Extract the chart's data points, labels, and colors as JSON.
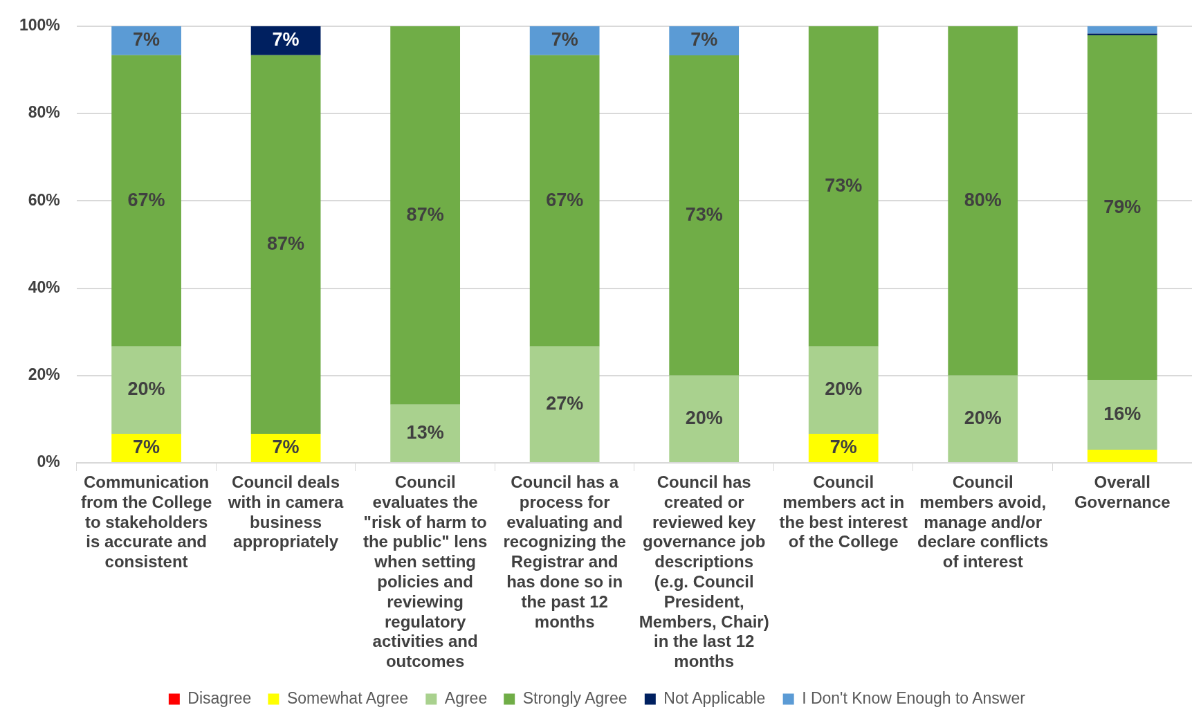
{
  "chart_data": {
    "type": "bar",
    "stacked": true,
    "categories": [
      "Communication from the College to stakeholders is accurate and consistent",
      "Council deals with in camera business appropriately",
      "Council evaluates the \"risk of harm to the public\" lens when setting policies and reviewing regulatory activities and outcomes",
      "Council has a process for evaluating and recognizing the Registrar and has done so in the past 12 months",
      "Council has created or reviewed key governance job descriptions (e.g. Council President, Members, Chair) in the last 12 months",
      "Council members act in the best interest of the College",
      "Council members avoid, manage and/or declare conflicts of interest",
      "Overall Governance"
    ],
    "series": [
      {
        "name": "Disagree",
        "color": "#ff0000",
        "values": [
          0,
          0,
          0,
          0,
          0,
          0,
          0,
          0
        ],
        "value_labels": [
          null,
          null,
          null,
          null,
          null,
          null,
          null,
          null
        ]
      },
      {
        "name": "Somewhat Agree",
        "color": "#ffff00",
        "values": [
          6.67,
          6.67,
          0,
          0,
          0,
          6.67,
          0,
          3.0
        ],
        "value_labels": [
          "7%",
          "7%",
          null,
          null,
          null,
          "7%",
          null,
          null
        ]
      },
      {
        "name": "Agree",
        "color": "#a9d18e",
        "values": [
          20,
          0,
          13.33,
          26.67,
          20,
          20,
          20,
          16
        ],
        "value_labels": [
          "20%",
          null,
          "13%",
          "27%",
          "20%",
          "20%",
          "20%",
          "16%"
        ]
      },
      {
        "name": "Strongly Agree",
        "color": "#70ad47",
        "values": [
          66.67,
          86.67,
          86.67,
          66.67,
          73.33,
          73.33,
          80,
          78.9
        ],
        "value_labels": [
          "67%",
          "87%",
          "87%",
          "67%",
          "73%",
          "73%",
          "80%",
          "79%"
        ]
      },
      {
        "name": "Not Applicable",
        "color": "#002060",
        "values": [
          0,
          6.67,
          0,
          0,
          0,
          0,
          0,
          0.4
        ],
        "value_labels": [
          null,
          "7%",
          null,
          null,
          null,
          null,
          null,
          null
        ]
      },
      {
        "name": "I Don't Know Enough to Answer",
        "color": "#5b9bd5",
        "values": [
          6.67,
          0,
          0,
          6.67,
          6.67,
          0,
          0,
          1.7
        ],
        "value_labels": [
          "7%",
          null,
          null,
          "7%",
          "7%",
          null,
          null,
          null
        ]
      }
    ],
    "ylim": [
      0,
      100
    ],
    "yticks": [
      {
        "value": 0,
        "label": "0%"
      },
      {
        "value": 20,
        "label": "20%"
      },
      {
        "value": 40,
        "label": "40%"
      },
      {
        "value": 60,
        "label": "60%"
      },
      {
        "value": 80,
        "label": "80%"
      },
      {
        "value": 100,
        "label": "100%"
      }
    ],
    "grid": "y",
    "legend": "bottom"
  }
}
